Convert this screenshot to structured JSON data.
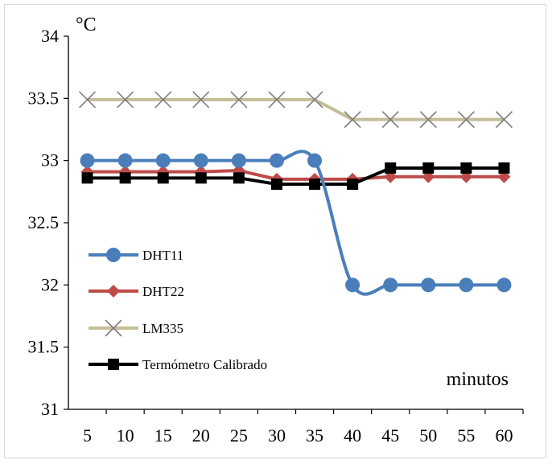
{
  "chart_data": {
    "type": "line",
    "title": "",
    "ylabel": "°C",
    "xlabel": "minutos",
    "categories": [
      "5",
      "10",
      "15",
      "20",
      "25",
      "30",
      "35",
      "40",
      "45",
      "50",
      "55",
      "60"
    ],
    "ylim": [
      31,
      34
    ],
    "yticks": [
      "31",
      "31.5",
      "32",
      "32.5",
      "33",
      "33.5",
      "34"
    ],
    "grid": false,
    "legend_position": "left-bottom",
    "series": [
      {
        "name": "DHT11",
        "color": "#4a7ebb",
        "marker": "circle",
        "smooth": true,
        "values": [
          33,
          33,
          33,
          33,
          33,
          33,
          33,
          32,
          32,
          32,
          32,
          32
        ]
      },
      {
        "name": "DHT22",
        "color": "#be4b48",
        "marker": "diamond",
        "smooth": false,
        "values": [
          32.91,
          32.91,
          32.91,
          32.91,
          32.92,
          32.85,
          32.85,
          32.85,
          32.87,
          32.87,
          32.87,
          32.87
        ]
      },
      {
        "name": "LM335",
        "color": "#c4bd97",
        "marker": "x",
        "smooth": false,
        "values": [
          33.49,
          33.49,
          33.49,
          33.49,
          33.49,
          33.49,
          33.49,
          33.33,
          33.33,
          33.33,
          33.33,
          33.33
        ]
      },
      {
        "name": "Termómetro Calibrado",
        "color": "#000000",
        "marker": "square",
        "smooth": false,
        "values": [
          32.86,
          32.86,
          32.86,
          32.86,
          32.86,
          32.81,
          32.81,
          32.81,
          32.94,
          32.94,
          32.94,
          32.94
        ]
      }
    ]
  }
}
